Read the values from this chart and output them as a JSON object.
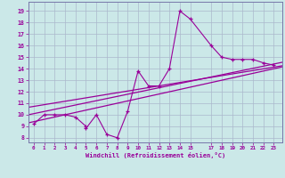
{
  "xlabel": "Windchill (Refroidissement éolien,°C)",
  "bg_color": "#cbe8e8",
  "grid_color": "#aab8cc",
  "line_color": "#990099",
  "spine_color": "#7777aa",
  "x_ticks": [
    0,
    1,
    2,
    3,
    4,
    5,
    6,
    7,
    8,
    9,
    10,
    11,
    12,
    13,
    14,
    15,
    17,
    18,
    19,
    20,
    21,
    22,
    23
  ],
  "y_ticks": [
    8,
    9,
    10,
    11,
    12,
    13,
    14,
    15,
    16,
    17,
    18,
    19
  ],
  "ylim": [
    7.6,
    19.8
  ],
  "xlim": [
    -0.5,
    23.8
  ],
  "data_x": [
    0,
    1,
    2,
    3,
    4,
    5,
    5,
    6,
    7,
    8,
    9,
    10,
    11,
    12,
    13,
    14,
    15,
    17,
    18,
    19,
    20,
    21,
    22,
    23
  ],
  "data_y": [
    9.2,
    10.0,
    10.0,
    10.0,
    9.8,
    9.0,
    8.8,
    10.0,
    8.3,
    8.0,
    10.3,
    13.8,
    12.5,
    12.5,
    14.0,
    19.0,
    18.3,
    16.0,
    15.0,
    14.8,
    14.8,
    14.8,
    14.5,
    14.3
  ],
  "line1_x": [
    -0.5,
    23.8
  ],
  "line1_y": [
    9.3,
    14.15
  ],
  "line2_x": [
    -0.5,
    23.8
  ],
  "line2_y": [
    10.0,
    14.55
  ],
  "line3_x": [
    -0.5,
    23.8
  ],
  "line3_y": [
    10.65,
    14.25
  ]
}
